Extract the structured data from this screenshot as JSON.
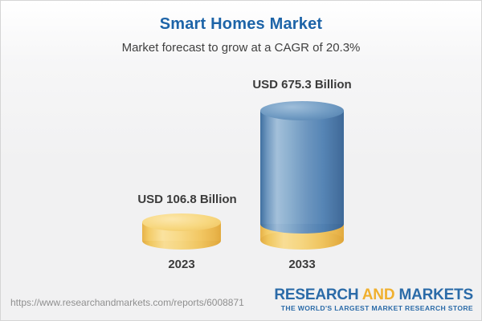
{
  "header": {
    "title": "Smart Homes Market",
    "subtitle": "Market forecast to grow at a CAGR of 20.3%"
  },
  "chart_data": {
    "type": "bar",
    "title": "Smart Homes Market",
    "subtitle": "Market forecast to grow at a CAGR of 20.3%",
    "categories": [
      "2023",
      "2033"
    ],
    "values": [
      106.8,
      675.3
    ],
    "value_labels": [
      "USD 106.8 Billion",
      "USD 675.3 Billion"
    ],
    "unit": "USD Billion",
    "cagr_percent": 20.3,
    "ylim": [
      0,
      700
    ],
    "grid": false,
    "legend": "none",
    "bar_style": "3d-cylinder",
    "colors": {
      "bar_2023": "#f5cd6d",
      "bar_2033": "#5c8aba",
      "bar_2033_base_band": "#f5cd6d",
      "title_text": "#1d64a8",
      "label_text": "#3b3b3b"
    }
  },
  "footer": {
    "source_url": "https://www.researchandmarkets.com/reports/6008871",
    "logo": {
      "word1": "RESEARCH",
      "word2": "AND",
      "word3": "MARKETS",
      "tagline": "THE WORLD'S LARGEST MARKET RESEARCH STORE",
      "blue": "#2b6ba8",
      "gold": "#f0b02f"
    }
  }
}
